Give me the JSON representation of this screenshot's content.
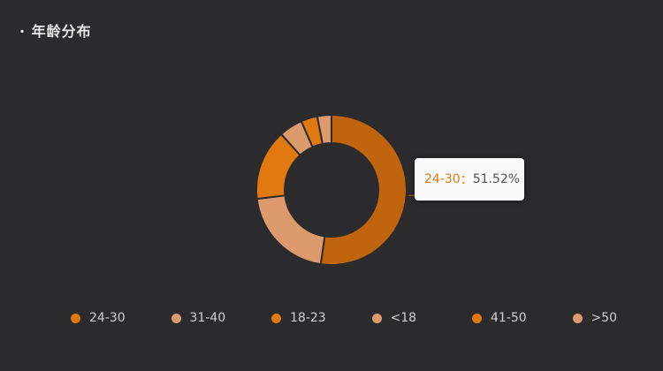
{
  "panel": {
    "title": "· 年龄分布"
  },
  "tooltip": {
    "name": "24-30",
    "sep": "：",
    "value": "51.52%"
  },
  "colors": {
    "background": "#2b2b2d",
    "slice_dark": "#c0640e",
    "slice_orange": "#e07a10",
    "slice_peach": "#dd9a6d"
  },
  "chart_data": {
    "type": "pie",
    "variant": "donut",
    "title": "年龄分布",
    "legend_position": "bottom",
    "categories": [
      "24-30",
      "31-40",
      "18-23",
      "<18",
      "41-50",
      ">50"
    ],
    "values": [
      51.52,
      20.5,
      15.0,
      5.0,
      3.5,
      3.0
    ],
    "slice_colors": [
      "#c0640e",
      "#dd9a6d",
      "#e07a10",
      "#dd9a6d",
      "#e07a10",
      "#dd9a6d"
    ],
    "legend_colors": [
      "#e07a10",
      "#dd9a6d",
      "#e07a10",
      "#dd9a6d",
      "#e07a10",
      "#dd9a6d"
    ],
    "highlight_label": "24-30: 51.52%"
  }
}
